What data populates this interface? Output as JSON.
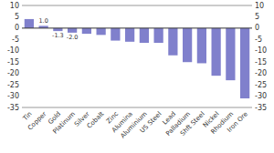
{
  "chart_data": {
    "type": "bar",
    "categories": [
      "Tin",
      "Copper",
      "Gold",
      "Platinum",
      "Silver",
      "Cobalt",
      "Zinc",
      "Alumina",
      "Aluminium",
      "US Steel",
      "Lead",
      "Palladium",
      "Shft Steel",
      "Nickel",
      "Rhodium",
      "Iron Ore"
    ],
    "values": [
      4.0,
      1.0,
      -1.3,
      -2.0,
      -2.5,
      -3.0,
      -5.5,
      -6.0,
      -6.5,
      -6.5,
      -12.0,
      -15.0,
      -15.5,
      -21.0,
      -23.0,
      -31.0
    ],
    "color": "#8080cc",
    "ylim": [
      -35,
      10
    ],
    "yticks": [
      -35,
      -30,
      -25,
      -20,
      -15,
      -10,
      -5,
      0,
      5,
      10
    ],
    "y2lim": [
      -35,
      10
    ],
    "y2ticks": [
      -35,
      -30,
      -25,
      -20,
      -15,
      -10,
      -5,
      0,
      5,
      10
    ],
    "grid": false,
    "annotations": [
      {
        "text": "1.0",
        "category": "Copper"
      },
      {
        "text": "-1.3",
        "category": "Gold"
      },
      {
        "text": "-2.0",
        "category": "Platinum"
      }
    ]
  }
}
